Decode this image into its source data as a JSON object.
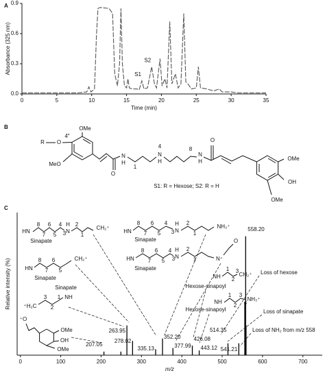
{
  "panel_labels": [
    "A",
    "B",
    "C"
  ],
  "chart_data": [
    {
      "type": "line",
      "xlabel": "Time (min)",
      "ylabel": "Absorbance (325 nm)",
      "xlim": [
        0,
        35
      ],
      "xticks": [
        0,
        5,
        10,
        15,
        20,
        25,
        30,
        35
      ],
      "ylim": [
        0,
        0.9
      ],
      "yticks": [
        {
          "value": 0,
          "label": "0.0"
        },
        0.3,
        0.6,
        0.9
      ],
      "color": "#555555",
      "line_style": "dashed",
      "x": [
        0,
        8,
        9.3,
        9.6,
        9.9,
        10.4,
        10.7,
        10.9,
        11.2,
        12.5,
        13.0,
        13.3,
        13.7,
        14.0,
        14.2,
        14.4,
        14.7,
        15.0,
        15.2,
        15.4,
        15.8,
        16.5,
        16.8,
        17.2,
        17.5,
        18.0,
        18.6,
        19.0,
        19.3,
        19.8,
        20.1,
        20.5,
        20.8,
        21.2,
        21.5,
        22.0,
        22.4,
        22.8,
        23.2,
        23.5,
        23.8,
        24.3,
        25.0,
        25.3,
        25.6,
        26.5,
        27.5,
        28.3,
        28.7,
        30,
        31,
        35
      ],
      "values": [
        0.01,
        0.01,
        0.02,
        0.07,
        0.02,
        0.05,
        0.6,
        0.85,
        0.86,
        0.85,
        0.8,
        0.2,
        0.08,
        0.3,
        0.85,
        0.3,
        0.08,
        0.06,
        0.15,
        0.06,
        0.05,
        0.05,
        0.04,
        0.13,
        0.05,
        0.06,
        0.27,
        0.1,
        0.06,
        0.35,
        0.08,
        0.15,
        0.06,
        0.72,
        0.1,
        0.2,
        0.06,
        0.1,
        0.8,
        0.12,
        0.1,
        0.05,
        0.06,
        0.27,
        0.06,
        0.05,
        0.03,
        0.05,
        0.02,
        0.02,
        0.01,
        0.01
      ],
      "annotations": [
        {
          "text": "S1",
          "x": 17.2,
          "y": 0.13
        },
        {
          "text": "S2",
          "x": 18.6,
          "y": 0.27
        }
      ]
    },
    {
      "type": "bar",
      "xlabel": "m/z",
      "ylabel": "Relative intensity (%)",
      "xlim": [
        -8,
        748
      ],
      "xticks": [
        0,
        100,
        200,
        300,
        400,
        500,
        600,
        700
      ],
      "ylim": [
        0,
        120
      ],
      "color": "#000000",
      "x": [
        207.05,
        249,
        263.95,
        278.02,
        335.13,
        352.2,
        377.99,
        426.08,
        443.12,
        514.35,
        541.21,
        556,
        558.2,
        559.2
      ],
      "x_labels": [
        "207.05",
        null,
        "263.95",
        "278.02",
        "335.13",
        "352.20",
        "377.99",
        "426.08",
        "443.12",
        "514.35",
        "541.21",
        null,
        "558.20",
        null
      ],
      "values": [
        3,
        3,
        25,
        12,
        5,
        14,
        6,
        8,
        4,
        10,
        10,
        45,
        100,
        25
      ],
      "annotations": [
        "Loss of hexose",
        "Loss of sinapate",
        "Loss of NH₂ from m/z 558"
      ],
      "fragments": [
        {
          "parts": [
            "HN",
            "Sinapate",
            "N",
            "H",
            "CH₂⁺"
          ],
          "numbers": [
            "8",
            "7",
            "6",
            "5",
            "4",
            "3",
            "2",
            "1"
          ]
        },
        {
          "parts": [
            "HN",
            "Sinapate",
            "N",
            "H",
            "NH₃⁺"
          ],
          "numbers": [
            "8",
            "7",
            "6",
            "5",
            "4",
            "3",
            "2",
            "1"
          ]
        },
        {
          "parts": [
            "HN",
            "Sinapate",
            "CH₂⁺"
          ],
          "numbers": [
            "8",
            "7",
            "6",
            "5"
          ]
        },
        {
          "parts": [
            "HN",
            "Sinapate",
            "N",
            "H",
            "N⁺",
            "O"
          ],
          "numbers": [
            "8",
            "7",
            "6",
            "5",
            "4",
            "3",
            "2",
            "1"
          ]
        },
        {
          "parts": [
            "Sinapate",
            "NH",
            "⁺H₂C"
          ],
          "numbers": [
            "3",
            "2",
            "1"
          ]
        },
        {
          "parts": [
            "Hexose-sinapoyl",
            "NH",
            "CH₂⁺"
          ],
          "numbers": [
            "1",
            "2",
            "3"
          ]
        },
        {
          "parts": [
            "Hexose-sinapoyl",
            "NH",
            "NH₃⁺"
          ],
          "numbers": [
            "1",
            "2",
            "3",
            "4"
          ]
        },
        {
          "parts": [
            "⁺O",
            "OMe",
            "OH",
            "OMe"
          ]
        }
      ]
    }
  ],
  "structure": {
    "texts": [
      "OMe",
      "R",
      "O",
      "4″",
      "MeO",
      "O",
      "N",
      "H",
      "1",
      "4",
      "N",
      "H",
      "8",
      "N",
      "H",
      "O",
      "OMe",
      "OH",
      "OMe"
    ],
    "caption": "S1: R = Hexose;  S2: R = H"
  }
}
